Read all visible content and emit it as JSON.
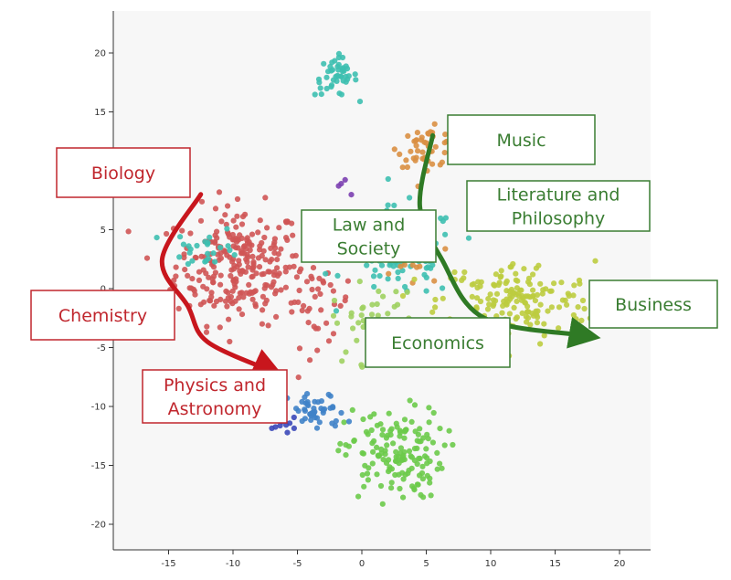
{
  "chart_data": {
    "type": "scatter",
    "title": "",
    "xlabel": "",
    "ylabel": "",
    "xlim": [
      -19.5,
      23
    ],
    "ylim": [
      -21.5,
      23
    ],
    "xticks": [
      "-15",
      "-10",
      "-5",
      "0",
      "5",
      "10",
      "15",
      "20"
    ],
    "yticks": [
      "20",
      "15",
      "10",
      "5",
      "0",
      "-5",
      "-10",
      "-15",
      "-20"
    ],
    "grid": false,
    "background": "#f7f7f7",
    "clusters": [
      {
        "color": "#cf5555",
        "center": [
          -9.5,
          2
        ],
        "spread": [
          4.5,
          4.5
        ],
        "count": 260
      },
      {
        "color": "#cf5555",
        "center": [
          -3.5,
          -1
        ],
        "spread": [
          2.5,
          3.5
        ],
        "count": 40
      },
      {
        "color": "#3dbfb0",
        "center": [
          -2,
          18
        ],
        "spread": [
          1.5,
          1.5
        ],
        "count": 45
      },
      {
        "color": "#3dbfb0",
        "center": [
          3,
          3
        ],
        "spread": [
          4,
          3.5
        ],
        "count": 110
      },
      {
        "color": "#3dbfb0",
        "center": [
          -12,
          3.5
        ],
        "spread": [
          2.5,
          1.5
        ],
        "count": 25
      },
      {
        "color": "#d98f42",
        "center": [
          5,
          12
        ],
        "spread": [
          2,
          1.5
        ],
        "count": 45
      },
      {
        "color": "#d98f42",
        "center": [
          3,
          2.5
        ],
        "spread": [
          2,
          2
        ],
        "count": 25
      },
      {
        "color": "#bccc3f",
        "center": [
          12,
          -1
        ],
        "spread": [
          5.5,
          3
        ],
        "count": 170
      },
      {
        "color": "#6cca4a",
        "center": [
          2.5,
          -14
        ],
        "spread": [
          3.5,
          3.5
        ],
        "count": 150
      },
      {
        "color": "#3f82c8",
        "center": [
          -3.5,
          -10.5
        ],
        "spread": [
          2,
          1.5
        ],
        "count": 45
      },
      {
        "color": "#3b48b8",
        "center": [
          -6,
          -11.5
        ],
        "spread": [
          0.8,
          0.5
        ],
        "count": 10
      },
      {
        "color": "#7b3fb0",
        "center": [
          -2,
          8.5
        ],
        "spread": [
          1,
          1
        ],
        "count": 4
      },
      {
        "color": "#9fd060",
        "center": [
          1,
          -3
        ],
        "spread": [
          3,
          3
        ],
        "count": 45
      }
    ],
    "annotations": [
      {
        "text": "Biology",
        "color": "#c0262d"
      },
      {
        "text": "Chemistry",
        "color": "#c0262d"
      },
      {
        "text": "Physics and\nAstronomy",
        "color": "#c0262d"
      },
      {
        "text": "Music",
        "color": "#3a7d32"
      },
      {
        "text": "Literature and\nPhilosophy",
        "color": "#3a7d32"
      },
      {
        "text": "Law and\nSociety",
        "color": "#3a7d32"
      },
      {
        "text": "Business",
        "color": "#3a7d32"
      },
      {
        "text": "Economics",
        "color": "#3a7d32"
      }
    ],
    "arrows": [
      {
        "color": "#c8161d",
        "path": [
          [
            -12.5,
            8
          ],
          [
            -15.5,
            2.5
          ],
          [
            -13.5,
            -1.5
          ],
          [
            -12,
            -4.5
          ],
          [
            -7,
            -7
          ]
        ]
      },
      {
        "color": "#2f7a25",
        "path": [
          [
            5.5,
            13
          ],
          [
            4.5,
            7
          ],
          [
            6.2,
            2.5
          ],
          [
            9.5,
            -2.5
          ],
          [
            17.5,
            -4
          ]
        ]
      }
    ]
  }
}
